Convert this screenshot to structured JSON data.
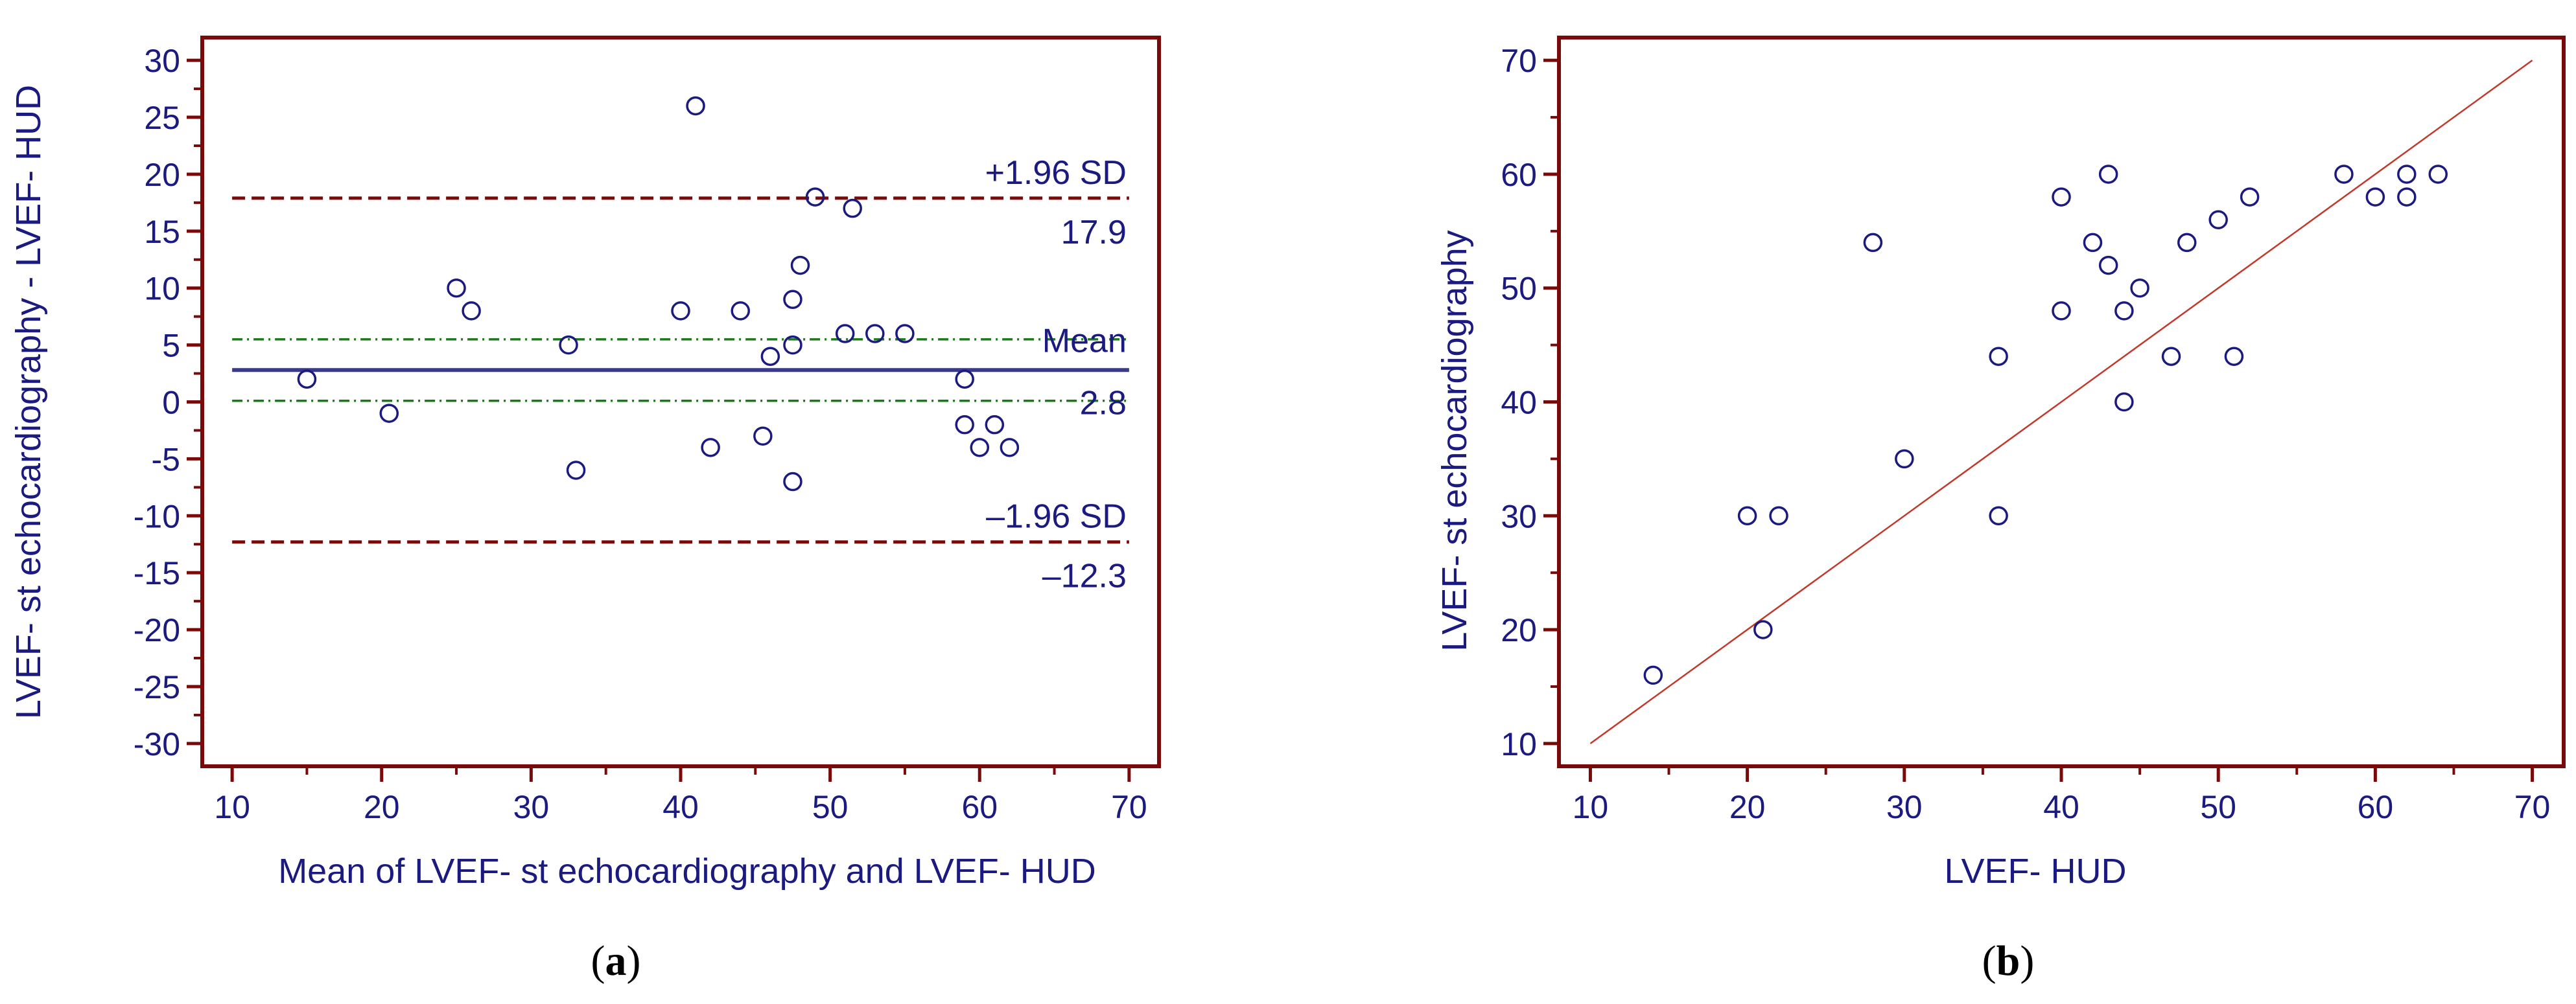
{
  "colors": {
    "frame": "#7a0a0a",
    "text": "#1a1a80",
    "point": "#1a1a80",
    "mean_line": "#3a3a8c",
    "limit_line": "#7a0a0a",
    "ci_line": "#1a7a1a",
    "identity_line": "#c0392b"
  },
  "chart_data": [
    {
      "id": "a",
      "type": "scatter",
      "subtype": "bland-altman",
      "panel_label": {
        "open": "(",
        "letter": "a",
        "close": ")"
      },
      "xlabel": "Mean of LVEF- st echocardiography and LVEF- HUD",
      "ylabel": "LVEF- st echocardiography - LVEF- HUD",
      "xlim": [
        8,
        72
      ],
      "ylim": [
        -32,
        32
      ],
      "xticks": [
        10,
        20,
        30,
        40,
        50,
        60,
        70
      ],
      "yticks": [
        30,
        25,
        20,
        15,
        10,
        5,
        0,
        -5,
        -10,
        -15,
        -20,
        -25,
        -30
      ],
      "points": [
        [
          15,
          2
        ],
        [
          20.5,
          -1
        ],
        [
          25,
          10
        ],
        [
          26,
          8
        ],
        [
          32.5,
          5
        ],
        [
          33,
          -6
        ],
        [
          40,
          8
        ],
        [
          41,
          26
        ],
        [
          42,
          -4
        ],
        [
          44,
          8
        ],
        [
          45.5,
          -3
        ],
        [
          46,
          4
        ],
        [
          47.5,
          9
        ],
        [
          47.5,
          5
        ],
        [
          47.5,
          -7
        ],
        [
          48,
          12
        ],
        [
          49,
          18
        ],
        [
          51,
          6
        ],
        [
          51.5,
          17
        ],
        [
          53,
          6
        ],
        [
          55,
          6
        ],
        [
          59,
          2
        ],
        [
          59,
          -2
        ],
        [
          60,
          -4
        ],
        [
          61,
          -2
        ],
        [
          62,
          -4
        ]
      ],
      "mean": 2.8,
      "upper_limit": 17.9,
      "lower_limit": -12.3,
      "mean_ci": [
        0.1,
        5.5
      ],
      "annotations": {
        "upper_label": "+1.96 SD",
        "upper_value": "17.9",
        "mean_label": "Mean",
        "mean_value": "2.8",
        "lower_label": "–1.96 SD",
        "lower_value": "–12.3"
      }
    },
    {
      "id": "b",
      "type": "scatter",
      "panel_label": {
        "open": "(",
        "letter": "b",
        "close": ")"
      },
      "xlabel": "LVEF- HUD",
      "ylabel": "LVEF- st echocardiography",
      "xlim": [
        8,
        72
      ],
      "ylim": [
        8,
        72
      ],
      "xticks": [
        10,
        20,
        30,
        40,
        50,
        60,
        70
      ],
      "yticks": [
        70,
        60,
        50,
        40,
        30,
        20,
        10
      ],
      "identity_line": [
        [
          10,
          10
        ],
        [
          70,
          70
        ]
      ],
      "points": [
        [
          14,
          16
        ],
        [
          20,
          30
        ],
        [
          21,
          20
        ],
        [
          22,
          30
        ],
        [
          28,
          54
        ],
        [
          30,
          35
        ],
        [
          36,
          44
        ],
        [
          36,
          30
        ],
        [
          40,
          58
        ],
        [
          40,
          48
        ],
        [
          42,
          54
        ],
        [
          43,
          60
        ],
        [
          43,
          52
        ],
        [
          44,
          48
        ],
        [
          44,
          40
        ],
        [
          45,
          50
        ],
        [
          47,
          44
        ],
        [
          48,
          54
        ],
        [
          50,
          56
        ],
        [
          51,
          44
        ],
        [
          52,
          58
        ],
        [
          58,
          60
        ],
        [
          60,
          58
        ],
        [
          62,
          60
        ],
        [
          62,
          58
        ],
        [
          64,
          60
        ]
      ]
    }
  ]
}
